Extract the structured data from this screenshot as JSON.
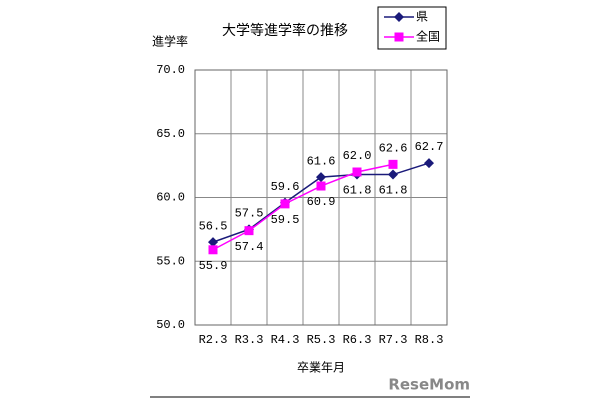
{
  "chart_data": {
    "type": "line",
    "title": "大学等進学率の推移",
    "y_label": "進学率",
    "x_label": "卒業年月",
    "categories": [
      "R2.3",
      "R3.3",
      "R4.3",
      "R5.3",
      "R6.3",
      "R7.3",
      "R8.3"
    ],
    "series": [
      {
        "name": "県",
        "color": "#1a1a7a",
        "marker": "diamond",
        "values": [
          56.5,
          57.5,
          59.6,
          61.6,
          61.8,
          61.8,
          62.7
        ],
        "value_labels": [
          "56.5",
          "57.5",
          "59.6",
          "61.6",
          "61.8",
          "61.8",
          "62.7"
        ]
      },
      {
        "name": "全国",
        "color": "#ff00ff",
        "marker": "square",
        "values": [
          55.9,
          57.4,
          59.5,
          60.9,
          62.0,
          62.6,
          null
        ],
        "value_labels": [
          "55.9",
          "57.4",
          "59.5",
          "60.9",
          "62.0",
          "62.6",
          null
        ]
      }
    ],
    "ylim": [
      50,
      70
    ],
    "yticks": [
      {
        "value": 50,
        "label": "50.0"
      },
      {
        "value": 55,
        "label": "55.0"
      },
      {
        "value": 60,
        "label": "60.0"
      },
      {
        "value": 65,
        "label": "65.0"
      },
      {
        "value": 70,
        "label": "70.0"
      }
    ],
    "grid": true,
    "legend": "top-right",
    "watermark": "ReseMom"
  }
}
